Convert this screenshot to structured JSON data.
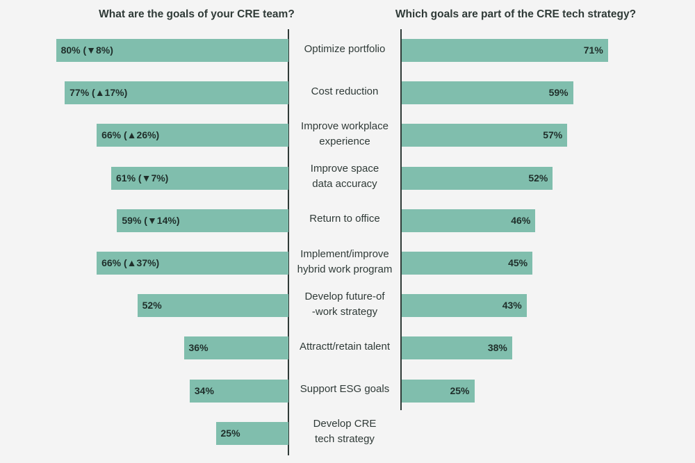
{
  "chart_data": {
    "type": "bar",
    "categories": [
      "Optimize portfolio",
      "Cost reduction",
      "Improve workplace\nexperience",
      "Improve space\ndata accuracy",
      "Return to office",
      "Implement/improve\nhybrid work program",
      "Develop future-of\n-work strategy",
      "Attractt/retain talent",
      "Support ESG goals",
      "Develop CRE\ntech strategy"
    ],
    "series": [
      {
        "name": "What are the goals of your CRE team?",
        "color": "#80bead",
        "values": [
          80,
          77,
          66,
          61,
          59,
          66,
          52,
          36,
          34,
          25
        ],
        "value_labels": [
          "80% (▼8%)",
          "77% (▲17%)",
          "66% (▲26%)",
          "61% (▼7%)",
          "59% (▼14%)",
          "66% (▲37%)",
          "52%",
          "36%",
          "34%",
          "25%"
        ]
      },
      {
        "name": "Which goals are part of the CRE tech strategy?",
        "color": "#80bead",
        "values": [
          71,
          59,
          57,
          52,
          46,
          45,
          43,
          38,
          25,
          null
        ],
        "value_labels": [
          "71%",
          "59%",
          "57%",
          "52%",
          "46%",
          "45%",
          "43%",
          "38%",
          "25%",
          null
        ]
      }
    ]
  }
}
